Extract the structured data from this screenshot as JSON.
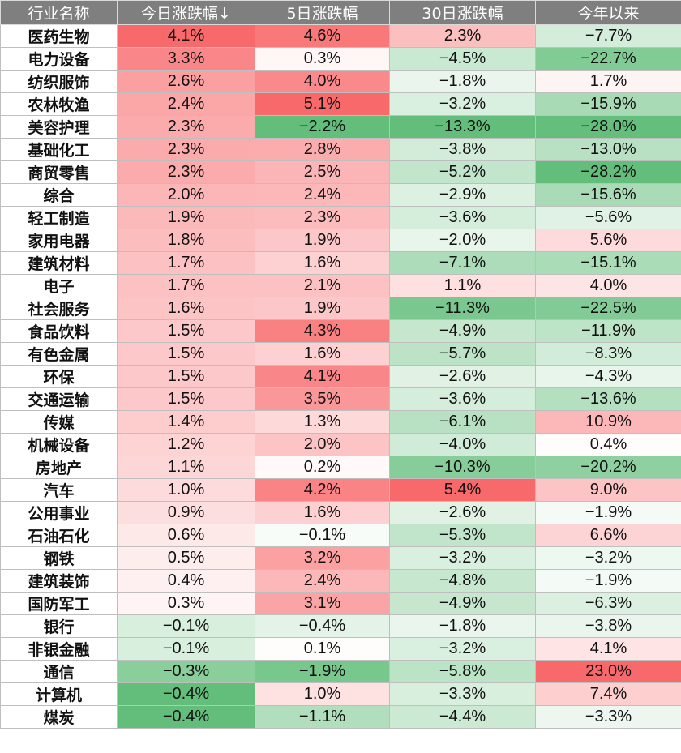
{
  "chart_data": {
    "type": "table",
    "columns": [
      "行业名称",
      "今日涨跌幅↓",
      "5日涨跌幅",
      "30日涨跌幅",
      "今年以来"
    ],
    "colors": {
      "positive": "#f8696b",
      "negative": "#63be7b",
      "neutral": "#ffffff"
    },
    "rows": [
      {
        "name": "医药生物",
        "d1": 4.1,
        "d5": 4.6,
        "d30": 2.3,
        "ytd": -7.7
      },
      {
        "name": "电力设备",
        "d1": 3.3,
        "d5": 0.3,
        "d30": -4.5,
        "ytd": -22.7
      },
      {
        "name": "纺织服饰",
        "d1": 2.6,
        "d5": 4.0,
        "d30": -1.8,
        "ytd": 1.7
      },
      {
        "name": "农林牧渔",
        "d1": 2.4,
        "d5": 5.1,
        "d30": -3.2,
        "ytd": -15.9
      },
      {
        "name": "美容护理",
        "d1": 2.3,
        "d5": -2.2,
        "d30": -13.3,
        "ytd": -28.0
      },
      {
        "name": "基础化工",
        "d1": 2.3,
        "d5": 2.8,
        "d30": -3.8,
        "ytd": -13.0
      },
      {
        "name": "商贸零售",
        "d1": 2.3,
        "d5": 2.5,
        "d30": -5.2,
        "ytd": -28.2
      },
      {
        "name": "综合",
        "d1": 2.0,
        "d5": 2.4,
        "d30": -2.9,
        "ytd": -15.6
      },
      {
        "name": "轻工制造",
        "d1": 1.9,
        "d5": 2.3,
        "d30": -3.6,
        "ytd": -5.6
      },
      {
        "name": "家用电器",
        "d1": 1.8,
        "d5": 1.9,
        "d30": -2.0,
        "ytd": 5.6
      },
      {
        "name": "建筑材料",
        "d1": 1.7,
        "d5": 1.6,
        "d30": -7.1,
        "ytd": -15.1
      },
      {
        "name": "电子",
        "d1": 1.7,
        "d5": 2.1,
        "d30": 1.1,
        "ytd": 4.0
      },
      {
        "name": "社会服务",
        "d1": 1.6,
        "d5": 1.9,
        "d30": -11.3,
        "ytd": -22.5
      },
      {
        "name": "食品饮料",
        "d1": 1.5,
        "d5": 4.3,
        "d30": -4.9,
        "ytd": -11.9
      },
      {
        "name": "有色金属",
        "d1": 1.5,
        "d5": 1.6,
        "d30": -5.7,
        "ytd": -8.3
      },
      {
        "name": "环保",
        "d1": 1.5,
        "d5": 4.1,
        "d30": -2.6,
        "ytd": -4.3
      },
      {
        "name": "交通运输",
        "d1": 1.5,
        "d5": 3.5,
        "d30": -3.6,
        "ytd": -13.6
      },
      {
        "name": "传媒",
        "d1": 1.4,
        "d5": 1.3,
        "d30": -6.1,
        "ytd": 10.9
      },
      {
        "name": "机械设备",
        "d1": 1.2,
        "d5": 2.0,
        "d30": -4.0,
        "ytd": 0.4
      },
      {
        "name": "房地产",
        "d1": 1.1,
        "d5": 0.2,
        "d30": -10.3,
        "ytd": -20.2
      },
      {
        "name": "汽车",
        "d1": 1.0,
        "d5": 4.2,
        "d30": 5.4,
        "ytd": 9.0
      },
      {
        "name": "公用事业",
        "d1": 0.9,
        "d5": 1.6,
        "d30": -2.6,
        "ytd": -1.9
      },
      {
        "name": "石油石化",
        "d1": 0.6,
        "d5": -0.1,
        "d30": -5.3,
        "ytd": 6.6
      },
      {
        "name": "钢铁",
        "d1": 0.5,
        "d5": 3.2,
        "d30": -3.2,
        "ytd": -3.2
      },
      {
        "name": "建筑装饰",
        "d1": 0.4,
        "d5": 2.4,
        "d30": -4.8,
        "ytd": -1.9
      },
      {
        "name": "国防军工",
        "d1": 0.3,
        "d5": 3.1,
        "d30": -4.9,
        "ytd": -6.3
      },
      {
        "name": "银行",
        "d1": -0.1,
        "d5": -0.4,
        "d30": -1.8,
        "ytd": -3.8
      },
      {
        "name": "非银金融",
        "d1": -0.1,
        "d5": 0.1,
        "d30": -3.2,
        "ytd": 4.1
      },
      {
        "name": "通信",
        "d1": -0.3,
        "d5": -1.9,
        "d30": -5.8,
        "ytd": 23.0
      },
      {
        "name": "计算机",
        "d1": -0.4,
        "d5": 1.0,
        "d30": -3.3,
        "ytd": 7.4
      },
      {
        "name": "煤炭",
        "d1": -0.4,
        "d5": -1.1,
        "d30": -4.4,
        "ytd": -3.3
      }
    ]
  }
}
